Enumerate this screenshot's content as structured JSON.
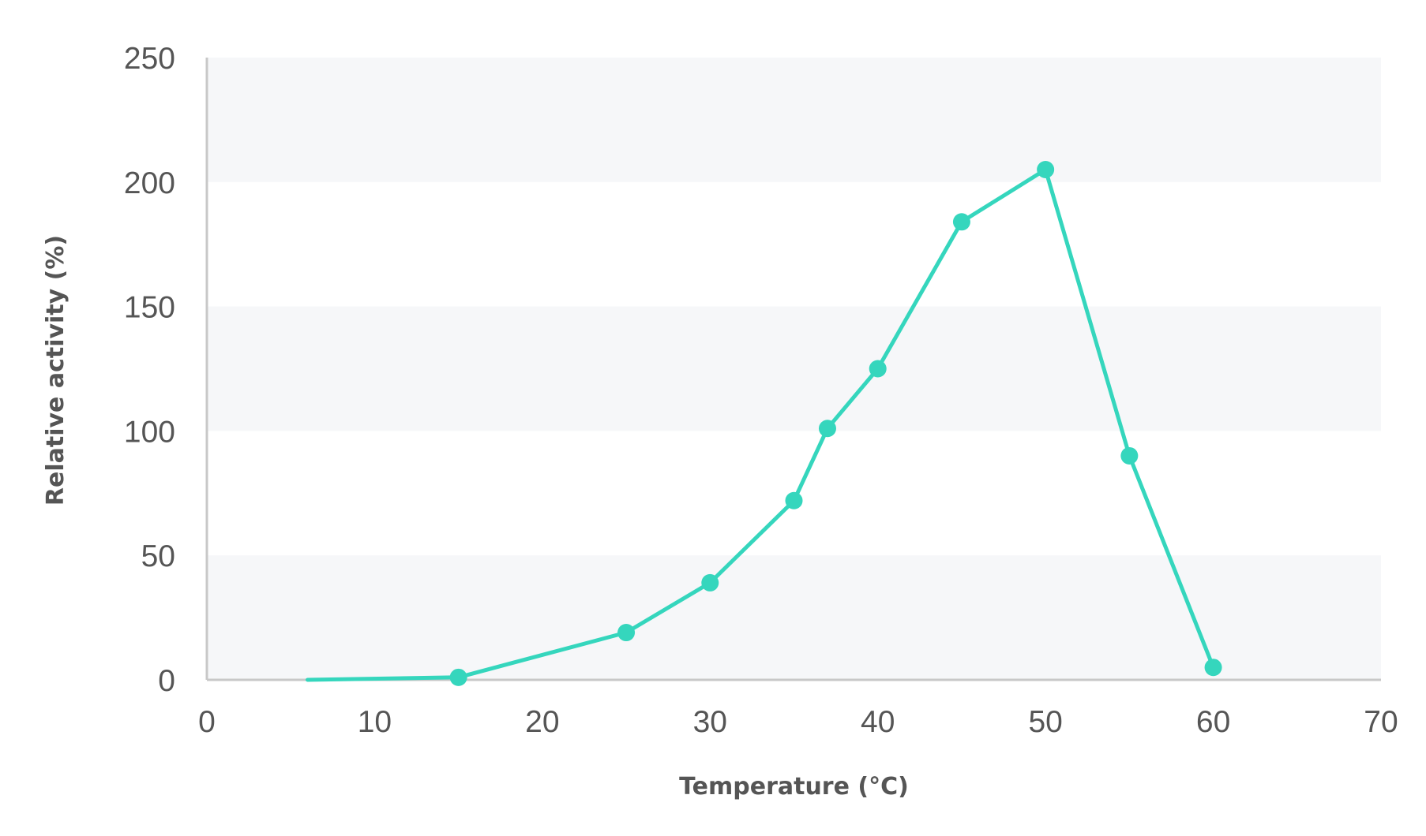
{
  "chart_data": {
    "type": "line",
    "title": "",
    "xlabel": "Temperature (°C)",
    "ylabel": "Relative activity (%)",
    "xlim": [
      0,
      70
    ],
    "ylim": [
      0,
      250
    ],
    "x_ticks": [
      "0",
      "10",
      "20",
      "30",
      "40",
      "50",
      "60",
      "70"
    ],
    "y_ticks": [
      "0",
      "50",
      "100",
      "150",
      "200",
      "250"
    ],
    "grid": "alternating horizontal bands",
    "line_color": "#35d6bd",
    "band_color": "#f6f7f9",
    "axis_color": "#c8c8c8",
    "series": [
      {
        "x": [
          6,
          15,
          25,
          30,
          35,
          37,
          40,
          45,
          50,
          55,
          60
        ],
        "y": [
          0,
          1,
          19,
          39,
          72,
          101,
          125,
          184,
          205,
          90,
          5
        ],
        "markers": [
          false,
          true,
          true,
          true,
          true,
          true,
          true,
          true,
          true,
          true,
          true
        ]
      }
    ]
  }
}
